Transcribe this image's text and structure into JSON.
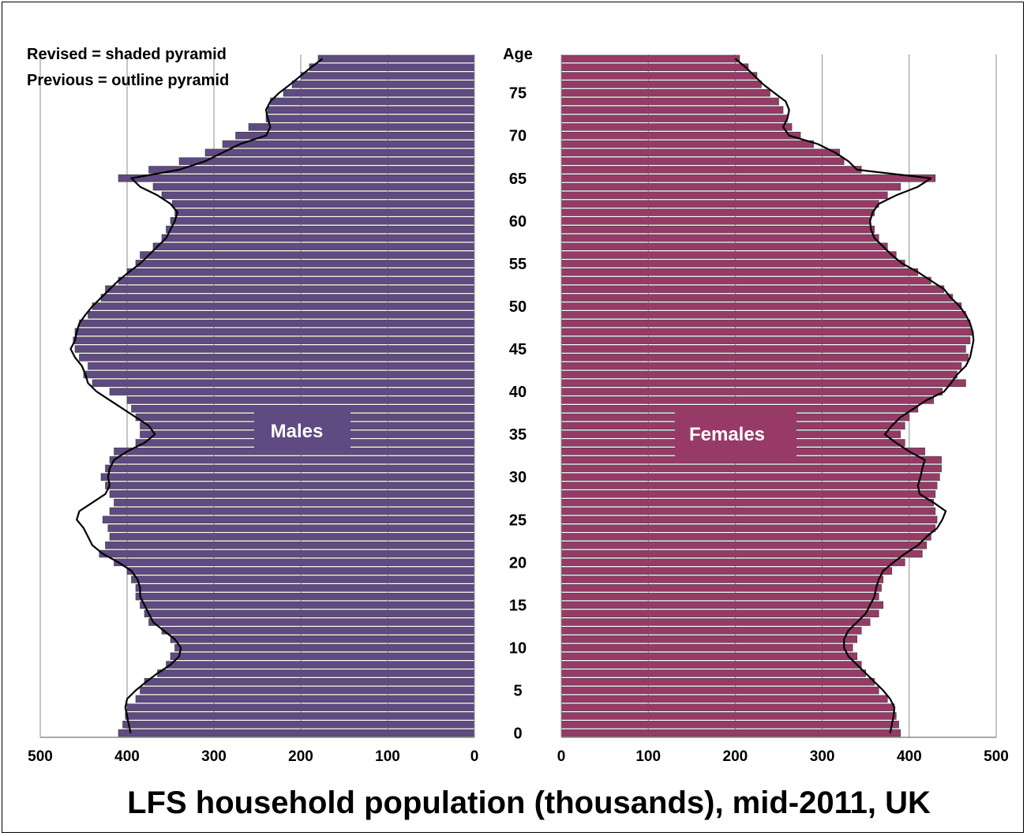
{
  "chart_data": {
    "type": "bar",
    "subtype": "population-pyramid",
    "title": "LFS household population (thousands), mid-2011, UK",
    "legend_notes": [
      "Revised = shaded pyramid",
      "Previous = outline pyramid"
    ],
    "age_axis_label": "Age",
    "age_ticks": [
      0,
      5,
      10,
      15,
      20,
      25,
      30,
      35,
      40,
      45,
      50,
      55,
      60,
      65,
      70,
      75
    ],
    "x_ticks": [
      500,
      400,
      300,
      200,
      100,
      0
    ],
    "xlim": [
      0,
      500
    ],
    "ages": [
      0,
      1,
      2,
      3,
      4,
      5,
      6,
      7,
      8,
      9,
      10,
      11,
      12,
      13,
      14,
      15,
      16,
      17,
      18,
      19,
      20,
      21,
      22,
      23,
      24,
      25,
      26,
      27,
      28,
      29,
      30,
      31,
      32,
      33,
      34,
      35,
      36,
      37,
      38,
      39,
      40,
      41,
      42,
      43,
      44,
      45,
      46,
      47,
      48,
      49,
      50,
      51,
      52,
      53,
      54,
      55,
      56,
      57,
      58,
      59,
      60,
      61,
      62,
      63,
      64,
      65,
      66,
      67,
      68,
      69,
      70,
      71,
      72,
      73,
      74,
      75,
      76,
      77,
      78,
      79
    ],
    "series": [
      {
        "name": "Males",
        "role": "revised",
        "color": "#5f4a82",
        "values": [
          410,
          405,
          402,
          400,
          390,
          385,
          380,
          365,
          355,
          350,
          345,
          350,
          360,
          375,
          380,
          385,
          390,
          390,
          395,
          400,
          415,
          432,
          425,
          420,
          422,
          428,
          420,
          415,
          420,
          425,
          430,
          425,
          420,
          415,
          390,
          385,
          385,
          390,
          395,
          400,
          420,
          440,
          450,
          445,
          455,
          460,
          462,
          460,
          455,
          445,
          440,
          430,
          425,
          410,
          400,
          390,
          385,
          370,
          360,
          355,
          350,
          345,
          348,
          360,
          370,
          410,
          375,
          340,
          310,
          290,
          275,
          260,
          240,
          238,
          235,
          220,
          210,
          200,
          190,
          180
        ]
      },
      {
        "name": "Females",
        "role": "revised",
        "color": "#973a67",
        "values": [
          390,
          388,
          385,
          383,
          375,
          365,
          360,
          350,
          345,
          340,
          335,
          340,
          345,
          355,
          365,
          370,
          365,
          368,
          370,
          380,
          395,
          415,
          420,
          425,
          430,
          432,
          430,
          428,
          430,
          432,
          435,
          437,
          437,
          418,
          395,
          390,
          395,
          400,
          410,
          428,
          438,
          465,
          455,
          460,
          468,
          465,
          470,
          472,
          470,
          465,
          460,
          450,
          440,
          425,
          410,
          395,
          385,
          375,
          365,
          360,
          355,
          360,
          365,
          375,
          390,
          430,
          345,
          325,
          320,
          290,
          275,
          265,
          260,
          255,
          250,
          240,
          230,
          225,
          215,
          205
        ]
      },
      {
        "name": "Males",
        "role": "previous",
        "color": "#000000",
        "values": [
          396,
          398,
          400,
          402,
          400,
          390,
          378,
          365,
          350,
          340,
          338,
          345,
          358,
          370,
          375,
          380,
          385,
          385,
          388,
          395,
          410,
          428,
          440,
          445,
          450,
          458,
          455,
          440,
          425,
          420,
          422,
          420,
          415,
          400,
          380,
          368,
          375,
          390,
          405,
          420,
          435,
          445,
          448,
          452,
          460,
          465,
          460,
          458,
          455,
          448,
          440,
          430,
          420,
          410,
          398,
          385,
          375,
          365,
          355,
          350,
          345,
          342,
          350,
          365,
          385,
          395,
          340,
          310,
          290,
          270,
          240,
          235,
          238,
          240,
          235,
          225,
          212,
          200,
          188,
          175
        ]
      },
      {
        "name": "Females",
        "role": "previous",
        "color": "#000000",
        "values": [
          378,
          380,
          382,
          383,
          378,
          370,
          360,
          350,
          340,
          330,
          325,
          325,
          330,
          340,
          350,
          355,
          360,
          362,
          365,
          370,
          382,
          395,
          410,
          420,
          432,
          438,
          442,
          428,
          412,
          410,
          413,
          415,
          418,
          400,
          385,
          372,
          380,
          390,
          405,
          420,
          440,
          448,
          455,
          465,
          470,
          472,
          474,
          473,
          470,
          465,
          458,
          448,
          440,
          425,
          410,
          392,
          380,
          370,
          360,
          356,
          355,
          358,
          365,
          385,
          410,
          425,
          340,
          330,
          315,
          295,
          262,
          255,
          260,
          262,
          258,
          245,
          232,
          222,
          212,
          200
        ]
      }
    ],
    "panel_labels": {
      "left": "Males",
      "right": "Females"
    },
    "grid": true
  }
}
